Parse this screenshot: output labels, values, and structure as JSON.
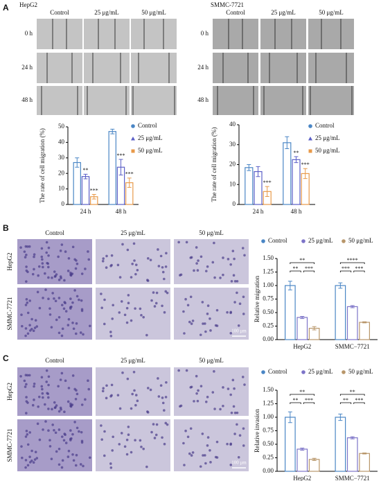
{
  "panel_a": {
    "label": "A",
    "groups": [
      {
        "cell": "HepG2",
        "columns": [
          "Control",
          "25 μg/mL",
          "50 μg/mL"
        ],
        "rows": [
          "0 h",
          "24 h",
          "48 h"
        ]
      },
      {
        "cell": "SMMC-7721",
        "columns": [
          "Control",
          "25 μg/mL",
          "50 μg/mL"
        ],
        "rows": [
          "0 h",
          "24 h",
          "48 h"
        ]
      }
    ]
  },
  "panel_b": {
    "label": "B",
    "columns": [
      "Control",
      "25 μg/mL",
      "50 μg/mL"
    ],
    "rows": [
      "HepG2",
      "SMMC-7721"
    ],
    "scale": "100 μm"
  },
  "panel_c": {
    "label": "C",
    "columns": [
      "Control",
      "25 μg/mL",
      "50 μg/mL"
    ],
    "rows": [
      "HepG2",
      "SMMC-7721"
    ],
    "scale": "100 μm"
  },
  "chart_data": [
    {
      "type": "bar",
      "ylabel": "The rate of cell migration (%)",
      "categories": [
        "24 h",
        "48 h"
      ],
      "ylim": [
        0,
        50
      ],
      "yticks": [
        0,
        10,
        20,
        30,
        40,
        50
      ],
      "legend": "right",
      "series": [
        {
          "name": "Control",
          "color": "#4a86c5",
          "marker": "circle",
          "values": [
            27,
            47
          ],
          "errors": [
            3,
            1.5
          ],
          "stars": [
            null,
            null
          ]
        },
        {
          "name": "25 μg/mL",
          "color": "#5b5fc7",
          "marker": "triangle",
          "values": [
            18,
            24
          ],
          "errors": [
            1.5,
            5
          ],
          "stars": [
            "**",
            "***"
          ]
        },
        {
          "name": "50 μg/mL",
          "color": "#e89a4a",
          "marker": "square",
          "values": [
            5,
            14
          ],
          "errors": [
            1.5,
            3
          ],
          "stars": [
            "***",
            "***"
          ]
        }
      ]
    },
    {
      "type": "bar",
      "ylabel": "The rate of cell migration (%)",
      "categories": [
        "24 h",
        "48 h"
      ],
      "ylim": [
        0,
        40
      ],
      "yticks": [
        0,
        10,
        20,
        30,
        40
      ],
      "legend": "right",
      "series": [
        {
          "name": "Control",
          "color": "#4a86c5",
          "marker": "circle",
          "values": [
            18.5,
            31
          ],
          "errors": [
            1.5,
            3
          ],
          "stars": [
            null,
            null
          ]
        },
        {
          "name": "25 μg/mL",
          "color": "#5b5fc7",
          "marker": "triangle",
          "values": [
            16.5,
            22.5
          ],
          "errors": [
            2.5,
            1.5
          ],
          "stars": [
            null,
            "**"
          ]
        },
        {
          "name": "50 μg/mL",
          "color": "#e89a4a",
          "marker": "square",
          "values": [
            6.5,
            15.5
          ],
          "errors": [
            2.5,
            2.5
          ],
          "stars": [
            "***",
            "***"
          ]
        }
      ]
    },
    {
      "type": "bar",
      "ylabel": "Relative migration",
      "categories": [
        "HepG2",
        "SMMC−7721"
      ],
      "ylim": [
        0,
        1.5
      ],
      "yticks": [
        {
          "value": 0,
          "label": "0.00"
        },
        {
          "value": 0.25,
          "label": "0.25"
        },
        {
          "value": 0.5,
          "label": "0.50"
        },
        {
          "value": 0.75,
          "label": "0.75"
        },
        {
          "value": 1,
          "label": "1.00"
        },
        {
          "value": 1.25,
          "label": "1.25"
        },
        {
          "value": 1.5,
          "label": "1.50"
        }
      ],
      "legend": "top",
      "brackets": [
        [
          "**",
          "**",
          "***"
        ],
        [
          "****",
          "***",
          "***"
        ]
      ],
      "series": [
        {
          "name": "Control",
          "color": "#4a86c5",
          "marker": "circle",
          "values": [
            1.0,
            1.0
          ],
          "errors": [
            0.08,
            0.05
          ]
        },
        {
          "name": "25 μg/mL",
          "color": "#7d74c8",
          "marker": "circle",
          "values": [
            0.41,
            0.61
          ],
          "errors": [
            0.02,
            0.02
          ]
        },
        {
          "name": "50 μg/mL",
          "color": "#b8966a",
          "marker": "circle",
          "values": [
            0.21,
            0.32
          ],
          "errors": [
            0.03,
            0.01
          ]
        }
      ]
    },
    {
      "type": "bar",
      "ylabel": "Relative invasion",
      "categories": [
        "HepG2",
        "SMMC−7721"
      ],
      "ylim": [
        0,
        1.5
      ],
      "yticks": [
        {
          "value": 0,
          "label": "0.00"
        },
        {
          "value": 0.25,
          "label": "0.25"
        },
        {
          "value": 0.5,
          "label": "0.50"
        },
        {
          "value": 0.75,
          "label": "0.75"
        },
        {
          "value": 1,
          "label": "1.00"
        },
        {
          "value": 1.25,
          "label": "1.25"
        },
        {
          "value": 1.5,
          "label": "1.50"
        }
      ],
      "legend": "top",
      "brackets": [
        [
          "**",
          "**",
          "***"
        ],
        [
          "**",
          "**",
          "***"
        ]
      ],
      "series": [
        {
          "name": "Control",
          "color": "#4a86c5",
          "marker": "circle",
          "values": [
            1.0,
            1.0
          ],
          "errors": [
            0.1,
            0.06
          ]
        },
        {
          "name": "25 μg/mL",
          "color": "#7d74c8",
          "marker": "circle",
          "values": [
            0.41,
            0.62
          ],
          "errors": [
            0.02,
            0.02
          ]
        },
        {
          "name": "50 μg/mL",
          "color": "#b8966a",
          "marker": "circle",
          "values": [
            0.22,
            0.33
          ],
          "errors": [
            0.02,
            0.01
          ]
        }
      ]
    }
  ]
}
